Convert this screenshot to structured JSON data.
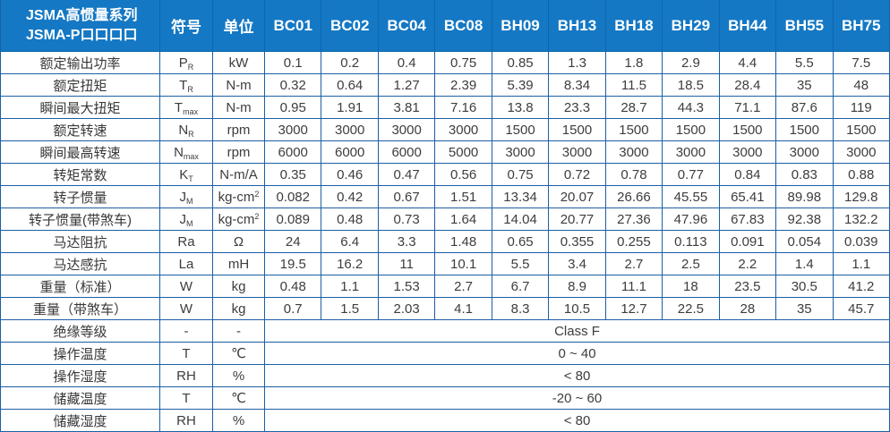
{
  "colors": {
    "header_bg": "#1478c4",
    "border": "#1b5fa5",
    "header_border": "#0e67ab",
    "text": "#3d3d3d"
  },
  "header": {
    "title_line1": "JSMA高惯量系列",
    "title_line2": "JSMA-P口口口口",
    "symbol_col": "符号",
    "unit_col": "单位",
    "models": [
      "BC01",
      "BC02",
      "BC04",
      "BC08",
      "BH09",
      "BH13",
      "BH18",
      "BH29",
      "BH44",
      "BH55",
      "BH75"
    ]
  },
  "rows": [
    {
      "label": "额定输出功率",
      "sym": "P",
      "sub": "R",
      "unit": "kW",
      "values": [
        "0.1",
        "0.2",
        "0.4",
        "0.75",
        "0.85",
        "1.3",
        "1.8",
        "2.9",
        "4.4",
        "5.5",
        "7.5"
      ]
    },
    {
      "label": "额定扭矩",
      "sym": "T",
      "sub": "R",
      "unit": "N-m",
      "values": [
        "0.32",
        "0.64",
        "1.27",
        "2.39",
        "5.39",
        "8.34",
        "11.5",
        "18.5",
        "28.4",
        "35",
        "48"
      ]
    },
    {
      "label": "瞬间最大扭矩",
      "sym": "T",
      "sub": "max",
      "unit": "N-m",
      "values": [
        "0.95",
        "1.91",
        "3.81",
        "7.16",
        "13.8",
        "23.3",
        "28.7",
        "44.3",
        "71.1",
        "87.6",
        "119"
      ]
    },
    {
      "label": "额定转速",
      "sym": "N",
      "sub": "R",
      "unit": "rpm",
      "values": [
        "3000",
        "3000",
        "3000",
        "3000",
        "1500",
        "1500",
        "1500",
        "1500",
        "1500",
        "1500",
        "1500"
      ]
    },
    {
      "label": "瞬间最高转速",
      "sym": "N",
      "sub": "max",
      "unit": "rpm",
      "values": [
        "6000",
        "6000",
        "6000",
        "5000",
        "3000",
        "3000",
        "3000",
        "3000",
        "3000",
        "3000",
        "3000"
      ]
    },
    {
      "label": "转矩常数",
      "sym": "K",
      "sub": "T",
      "unit": "N-m/A",
      "values": [
        "0.35",
        "0.46",
        "0.47",
        "0.56",
        "0.75",
        "0.72",
        "0.78",
        "0.77",
        "0.84",
        "0.83",
        "0.88"
      ]
    },
    {
      "label": "转子惯量",
      "sym": "J",
      "sub": "M",
      "unit": "kg-cm",
      "unit_sup": "2",
      "values": [
        "0.082",
        "0.42",
        "0.67",
        "1.51",
        "13.34",
        "20.07",
        "26.66",
        "45.55",
        "65.41",
        "89.98",
        "129.8"
      ]
    },
    {
      "label": "转子惯量(带煞车)",
      "sym": "J",
      "sub": "M",
      "unit": "kg-cm",
      "unit_sup": "2",
      "values": [
        "0.089",
        "0.48",
        "0.73",
        "1.64",
        "14.04",
        "20.77",
        "27.36",
        "47.96",
        "67.83",
        "92.38",
        "132.2"
      ]
    },
    {
      "label": "马达阻抗",
      "sym": "Ra",
      "unit": "Ω",
      "values": [
        "24",
        "6.4",
        "3.3",
        "1.48",
        "0.65",
        "0.355",
        "0.255",
        "0.113",
        "0.091",
        "0.054",
        "0.039"
      ]
    },
    {
      "label": "马达感抗",
      "sym": "La",
      "unit": "mH",
      "values": [
        "19.5",
        "16.2",
        "11",
        "10.1",
        "5.5",
        "3.4",
        "2.7",
        "2.5",
        "2.2",
        "1.4",
        "1.1"
      ]
    },
    {
      "label": "重量（标准）",
      "sym": "W",
      "unit": "kg",
      "values": [
        "0.48",
        "1.1",
        "1.53",
        "2.7",
        "6.7",
        "8.9",
        "11.1",
        "18",
        "23.5",
        "30.5",
        "41.2"
      ]
    },
    {
      "label": "重量（带煞车）",
      "sym": "W",
      "unit": "kg",
      "values": [
        "0.7",
        "1.5",
        "2.03",
        "4.1",
        "8.3",
        "10.5",
        "12.7",
        "22.5",
        "28",
        "35",
        "45.7"
      ]
    },
    {
      "label": "绝缘等级",
      "sym": "-",
      "unit": "-",
      "merged": "Class F"
    },
    {
      "label": "操作温度",
      "sym": "T",
      "unit": "℃",
      "merged": "0 ~ 40"
    },
    {
      "label": "操作湿度",
      "sym": "RH",
      "unit": "%",
      "merged": "< 80"
    },
    {
      "label": "储藏温度",
      "sym": "T",
      "unit": "℃",
      "merged": "-20 ~ 60"
    },
    {
      "label": "储藏湿度",
      "sym": "RH",
      "unit": "%",
      "merged": "< 80"
    }
  ]
}
